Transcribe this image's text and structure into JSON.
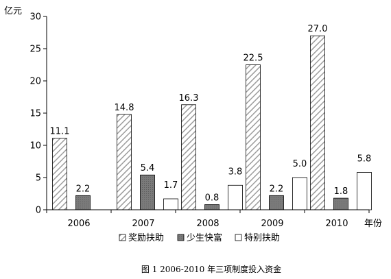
{
  "chart_data": {
    "type": "bar",
    "categories": [
      "2006",
      "2007",
      "2008",
      "2009",
      "2010"
    ],
    "series": [
      {
        "name": "奖励扶助",
        "values": [
          11.1,
          14.8,
          16.3,
          22.5,
          27.0
        ],
        "labels": [
          "11.1",
          "14.8",
          "16.3",
          "22.5",
          "27.0"
        ],
        "pattern": "hatch"
      },
      {
        "name": "少生快富",
        "values": [
          2.2,
          5.4,
          0.8,
          2.2,
          1.8
        ],
        "labels": [
          "2.2",
          "5.4",
          "0.8",
          "2.2",
          "1.8"
        ],
        "pattern": "gray"
      },
      {
        "name": "特别扶助",
        "values": [
          0,
          1.7,
          3.8,
          5.0,
          5.8
        ],
        "labels": [
          "",
          "1.7",
          "3.8",
          "5.0",
          "5.8"
        ],
        "pattern": "white"
      }
    ],
    "ylabel": "亿元",
    "xlabel": "年份",
    "ylim": [
      0,
      30
    ],
    "yticks": [
      0,
      5,
      10,
      15,
      20,
      25,
      30
    ],
    "ytick_labels": [
      "0",
      "5",
      "10",
      "15",
      "20",
      "25",
      "30"
    ],
    "legend_position": "bottom",
    "grid": false,
    "colors": {
      "hatch_fg": "#9c9c9c",
      "gray_fill": "#7a7a7a",
      "white_fill": "#ffffff",
      "stroke": "#000000"
    }
  },
  "caption": "图 1 2006-2010 年三项制度投入资金"
}
